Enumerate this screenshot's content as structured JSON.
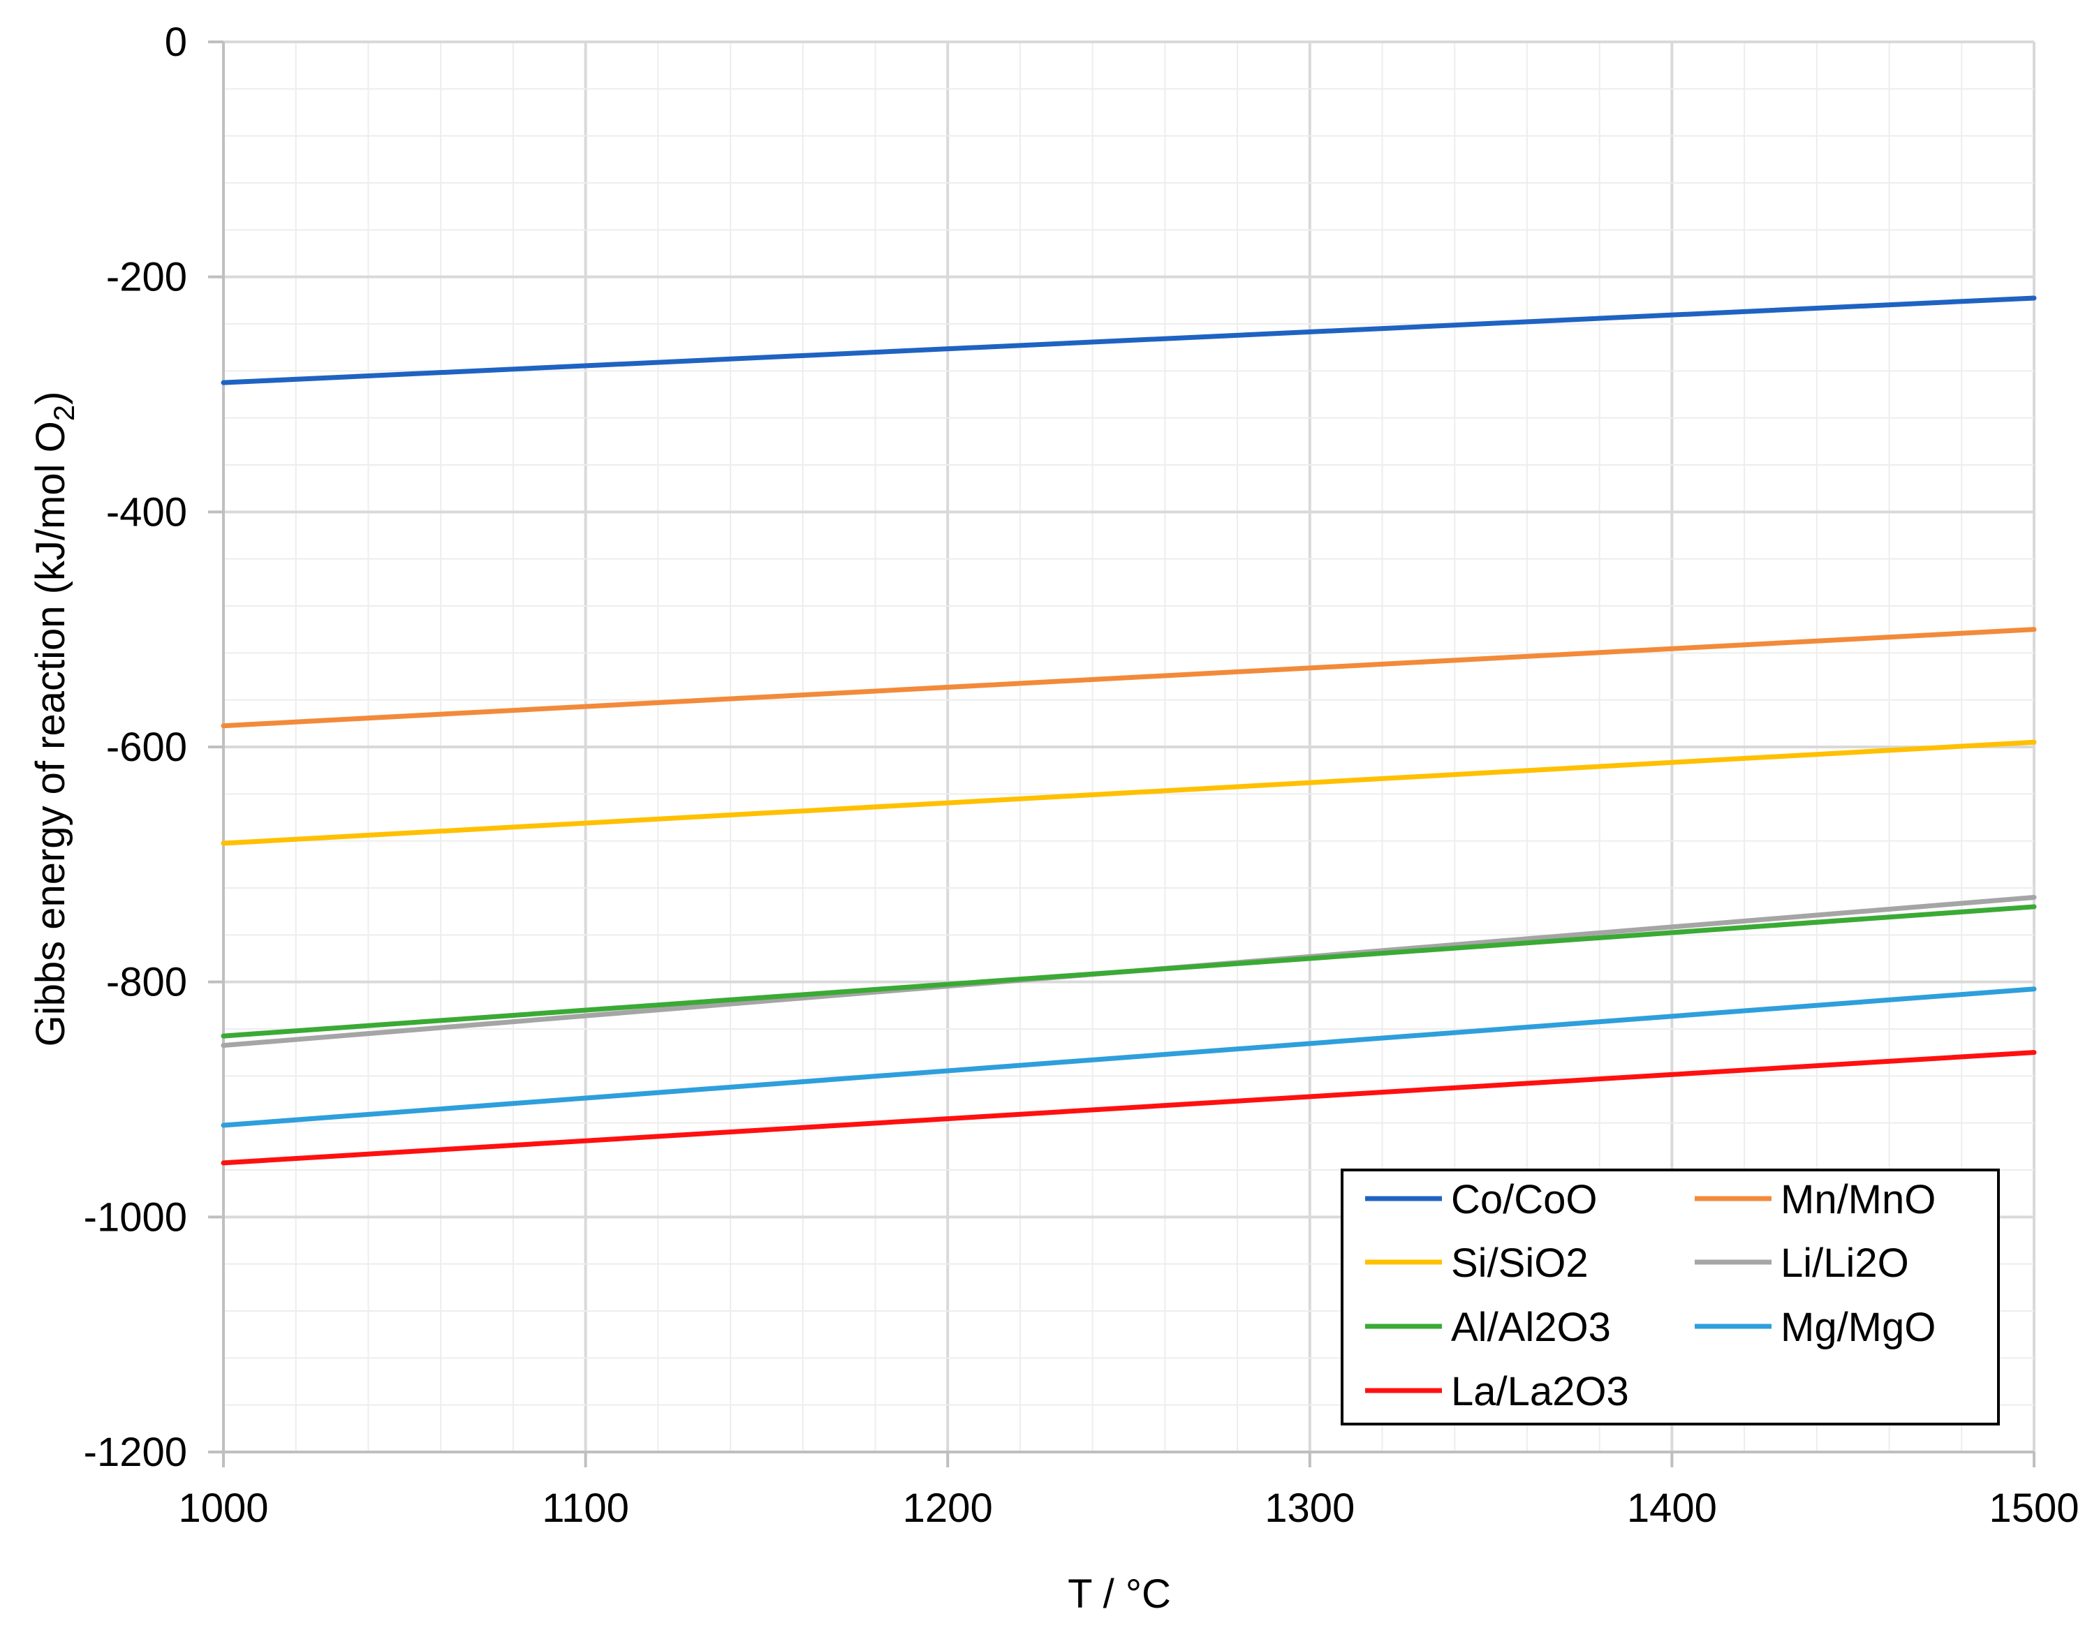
{
  "chart_data": {
    "type": "line",
    "title": "",
    "xlabel": "T / °C",
    "ylabel": "Gibbs energy of reaction  (kJ/mol O",
    "ylabel_subscript": "2",
    "ylabel_close": ")",
    "xlim": [
      1000,
      1500
    ],
    "ylim": [
      -1200,
      0
    ],
    "x_ticks": [
      1000,
      1100,
      1200,
      1300,
      1400,
      1500
    ],
    "y_ticks": [
      0,
      -200,
      -400,
      -600,
      -800,
      -1000,
      -1200
    ],
    "x_tick_labels": [
      "1000",
      "1100",
      "1200",
      "1300",
      "1400",
      "1500"
    ],
    "y_tick_labels": [
      "0",
      "-200",
      "-400",
      "-600",
      "-800",
      "-1000",
      "-1200"
    ],
    "grid": true,
    "legend_position": "bottom-right",
    "x": [
      1000,
      1500
    ],
    "series": [
      {
        "name": "Co/CoO",
        "color": "#1f63c2",
        "values": [
          -290,
          -218
        ]
      },
      {
        "name": "Mn/MnO",
        "color": "#f28a3a",
        "values": [
          -582,
          -500
        ]
      },
      {
        "name": "Si/SiO2",
        "color": "#ffc000",
        "values": [
          -682,
          -596
        ]
      },
      {
        "name": "Li/Li2O",
        "color": "#a5a5a5",
        "values": [
          -854,
          -728
        ]
      },
      {
        "name": "Al/Al2O3",
        "color": "#3aaa35",
        "values": [
          -846,
          -736
        ]
      },
      {
        "name": "Mg/MgO",
        "color": "#2e9fdc",
        "values": [
          -922,
          -806
        ]
      },
      {
        "name": "La/La2O3",
        "color": "#ff1010",
        "values": [
          -954,
          -860
        ]
      }
    ]
  }
}
